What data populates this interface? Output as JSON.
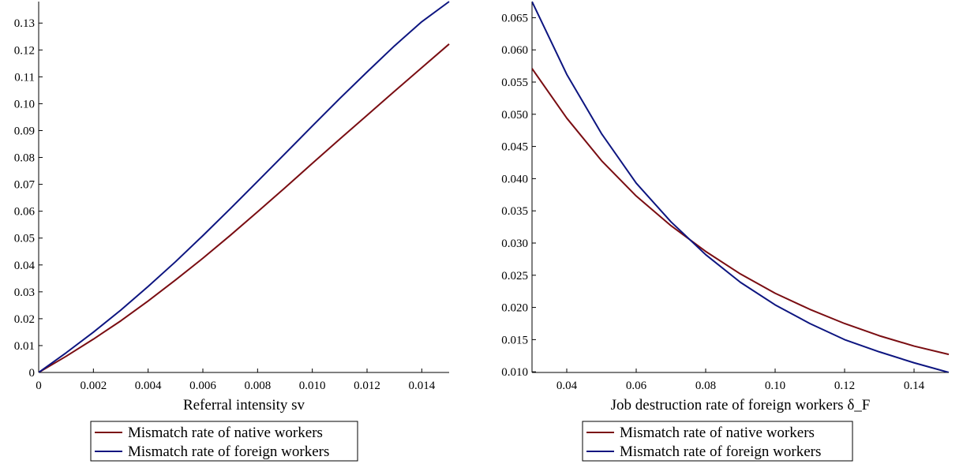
{
  "colors": {
    "native": "#7a0d12",
    "foreign": "#0d1580",
    "axis": "#000000"
  },
  "chart_data": [
    {
      "type": "line",
      "title": "",
      "xlabel": "Referral intensity sv",
      "ylabel": "",
      "xlim": [
        0,
        0.015
      ],
      "ylim": [
        0,
        0.138
      ],
      "x_ticks": [
        0,
        0.002,
        0.004,
        0.006,
        0.008,
        0.01,
        0.012,
        0.014
      ],
      "x_tick_labels": [
        "0",
        "0.002",
        "0.004",
        "0.006",
        "0.008",
        "0.010",
        "0.012",
        "0.014"
      ],
      "y_ticks": [
        0,
        0.01,
        0.02,
        0.03,
        0.04,
        0.05,
        0.06,
        0.07,
        0.08,
        0.09,
        0.1,
        0.11,
        0.12,
        0.13
      ],
      "y_tick_labels": [
        "0",
        "0.01",
        "0.02",
        "0.03",
        "0.04",
        "0.05",
        "0.06",
        "0.07",
        "0.08",
        "0.09",
        "0.10",
        "0.11",
        "0.12",
        "0.13"
      ],
      "grid": false,
      "legend_position": "bottom",
      "x": [
        0,
        0.001,
        0.002,
        0.003,
        0.004,
        0.005,
        0.006,
        0.007,
        0.008,
        0.009,
        0.01,
        0.011,
        0.012,
        0.013,
        0.014,
        0.015
      ],
      "series": [
        {
          "name": "Mismatch rate of native workers",
          "color_key": "native",
          "values": [
            0,
            0.006,
            0.0124,
            0.0192,
            0.0266,
            0.0344,
            0.0425,
            0.051,
            0.0598,
            0.0687,
            0.0778,
            0.0868,
            0.0957,
            0.1046,
            0.1134,
            0.1222
          ]
        },
        {
          "name": "Mismatch rate of foreign workers",
          "color_key": "foreign",
          "values": [
            0,
            0.0073,
            0.015,
            0.0232,
            0.032,
            0.0412,
            0.0509,
            0.0609,
            0.0711,
            0.0814,
            0.0917,
            0.1019,
            0.1118,
            0.1215,
            0.1305,
            0.138
          ]
        }
      ]
    },
    {
      "type": "line",
      "title": "",
      "xlabel": "Job destruction rate of foreign workers δ_F",
      "ylabel": "",
      "xlim": [
        0.03,
        0.15
      ],
      "ylim": [
        0.0099,
        0.0675
      ],
      "x_ticks": [
        0.04,
        0.06,
        0.08,
        0.1,
        0.12,
        0.14
      ],
      "x_tick_labels": [
        "0.04",
        "0.06",
        "0.08",
        "0.10",
        "0.12",
        "0.14"
      ],
      "y_ticks": [
        0.01,
        0.015,
        0.02,
        0.025,
        0.03,
        0.035,
        0.04,
        0.045,
        0.05,
        0.055,
        0.06,
        0.065
      ],
      "y_tick_labels": [
        "0.010",
        "0.015",
        "0.020",
        "0.025",
        "0.030",
        "0.035",
        "0.040",
        "0.045",
        "0.050",
        "0.055",
        "0.060",
        "0.065"
      ],
      "grid": false,
      "legend_position": "bottom",
      "x": [
        0.03,
        0.04,
        0.05,
        0.06,
        0.07,
        0.08,
        0.09,
        0.1,
        0.11,
        0.12,
        0.13,
        0.14,
        0.15
      ],
      "series": [
        {
          "name": "Mismatch rate of native workers",
          "color_key": "native",
          "values": [
            0.0571,
            0.0494,
            0.0428,
            0.0373,
            0.0327,
            0.0287,
            0.0252,
            0.0222,
            0.0197,
            0.0175,
            0.0156,
            0.014,
            0.0127
          ]
        },
        {
          "name": "Mismatch rate of foreign workers",
          "color_key": "foreign",
          "values": [
            0.0675,
            0.0562,
            0.047,
            0.0393,
            0.0333,
            0.0282,
            0.0239,
            0.0204,
            0.0175,
            0.015,
            0.0131,
            0.0114,
            0.0099
          ]
        }
      ]
    }
  ]
}
